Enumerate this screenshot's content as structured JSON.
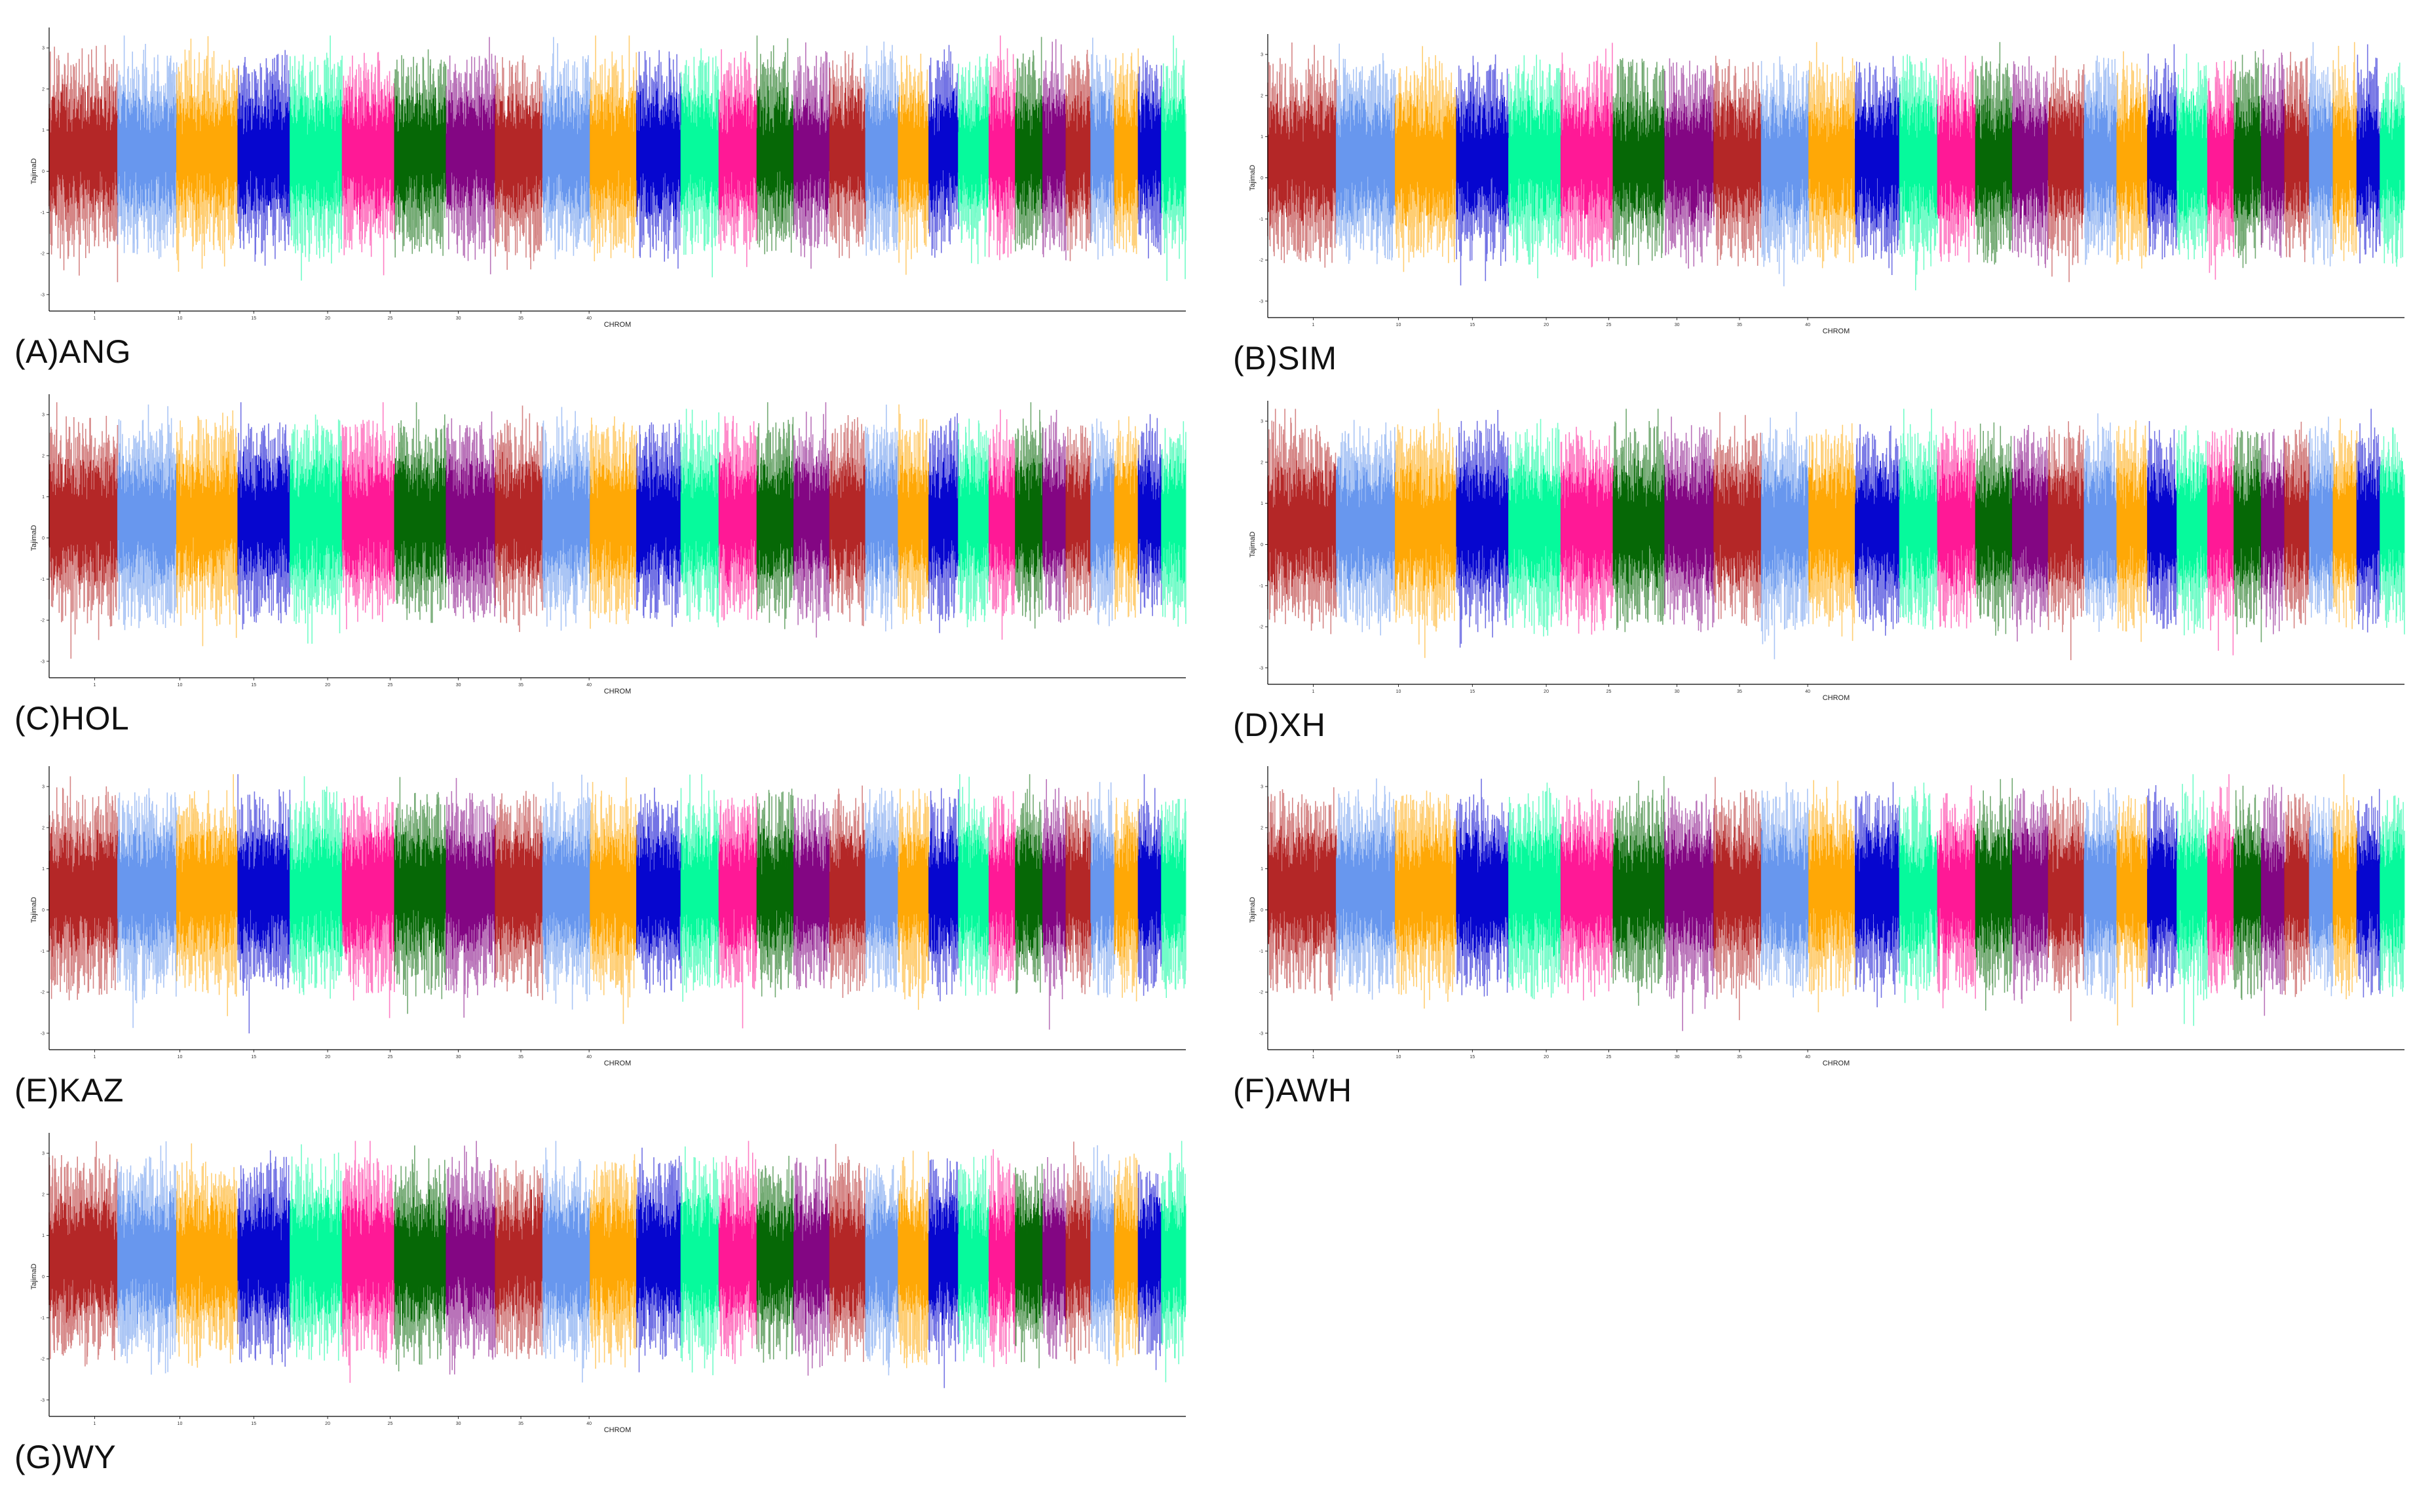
{
  "figure": {
    "x_axis_title": "CHROM",
    "y_axis_title": "TajimaD"
  },
  "chart_data": [
    {
      "type": "line",
      "panel": "(A)ANG",
      "xlabel": "CHROM",
      "ylabel": "TajimaD",
      "categories": [
        "1",
        "2",
        "3",
        "4",
        "5",
        "6",
        "7",
        "8",
        "9",
        "10",
        "11",
        "12",
        "13",
        "14",
        "15",
        "16",
        "17",
        "18",
        "19",
        "20",
        "21",
        "22",
        "23",
        "24",
        "25",
        "26",
        "27",
        "28",
        "29"
      ],
      "x_tick_labels": [
        "1",
        "10",
        "15",
        "20",
        "25",
        "30",
        "35",
        "40"
      ],
      "y_tick_labels": [
        "-3",
        "-2",
        "-1",
        "0",
        "1",
        "2",
        "3"
      ],
      "ylim": [
        -3.4,
        3.4
      ],
      "grid": false,
      "legend": "none",
      "chromosome_palette": [
        "#b22222",
        "#6495ed",
        "#ffa500",
        "#0000cd",
        "#00fa9a",
        "#ff1493",
        "#006400",
        "#800080"
      ]
    },
    {
      "type": "line",
      "panel": "(B)SIM",
      "xlabel": "CHROM",
      "ylabel": "TajimaD",
      "categories": [
        "1",
        "2",
        "3",
        "4",
        "5",
        "6",
        "7",
        "8",
        "9",
        "10",
        "11",
        "12",
        "13",
        "14",
        "15",
        "16",
        "17",
        "18",
        "19",
        "20",
        "21",
        "22",
        "23",
        "24",
        "25",
        "26",
        "27",
        "28",
        "29"
      ],
      "x_tick_labels": [
        "1",
        "10",
        "15",
        "20",
        "25",
        "30",
        "35",
        "40"
      ],
      "y_tick_labels": [
        "-3",
        "-2",
        "-1",
        "0",
        "1",
        "2",
        "3"
      ],
      "ylim": [
        -3.4,
        3.4
      ],
      "grid": false,
      "legend": "none",
      "chromosome_palette": [
        "#b22222",
        "#6495ed",
        "#ffa500",
        "#0000cd",
        "#00fa9a",
        "#ff1493",
        "#006400",
        "#800080"
      ]
    },
    {
      "type": "line",
      "panel": "(C)HOL",
      "xlabel": "CHROM",
      "ylabel": "TajimaD",
      "categories": [
        "1",
        "2",
        "3",
        "4",
        "5",
        "6",
        "7",
        "8",
        "9",
        "10",
        "11",
        "12",
        "13",
        "14",
        "15",
        "16",
        "17",
        "18",
        "19",
        "20",
        "21",
        "22",
        "23",
        "24",
        "25",
        "26",
        "27",
        "28",
        "29"
      ],
      "x_tick_labels": [
        "1",
        "10",
        "15",
        "20",
        "25",
        "30",
        "35",
        "40"
      ],
      "y_tick_labels": [
        "-3",
        "-2",
        "-1",
        "0",
        "1",
        "2",
        "3"
      ],
      "ylim": [
        -3.4,
        3.4
      ],
      "grid": false,
      "legend": "none",
      "chromosome_palette": [
        "#b22222",
        "#6495ed",
        "#ffa500",
        "#0000cd",
        "#00fa9a",
        "#ff1493",
        "#006400",
        "#800080"
      ]
    },
    {
      "type": "line",
      "panel": "(D)XH",
      "xlabel": "CHROM",
      "ylabel": "TajimaD",
      "categories": [
        "1",
        "2",
        "3",
        "4",
        "5",
        "6",
        "7",
        "8",
        "9",
        "10",
        "11",
        "12",
        "13",
        "14",
        "15",
        "16",
        "17",
        "18",
        "19",
        "20",
        "21",
        "22",
        "23",
        "24",
        "25",
        "26",
        "27",
        "28",
        "29"
      ],
      "x_tick_labels": [
        "1",
        "10",
        "15",
        "20",
        "25",
        "30",
        "35",
        "40"
      ],
      "y_tick_labels": [
        "-3",
        "-2",
        "-1",
        "0",
        "1",
        "2",
        "3"
      ],
      "ylim": [
        -3.4,
        3.4
      ],
      "grid": false,
      "legend": "none",
      "chromosome_palette": [
        "#b22222",
        "#6495ed",
        "#ffa500",
        "#0000cd",
        "#00fa9a",
        "#ff1493",
        "#006400",
        "#800080"
      ]
    },
    {
      "type": "line",
      "panel": "(E)KAZ",
      "xlabel": "CHROM",
      "ylabel": "TajimaD",
      "categories": [
        "1",
        "2",
        "3",
        "4",
        "5",
        "6",
        "7",
        "8",
        "9",
        "10",
        "11",
        "12",
        "13",
        "14",
        "15",
        "16",
        "17",
        "18",
        "19",
        "20",
        "21",
        "22",
        "23",
        "24",
        "25",
        "26",
        "27",
        "28",
        "29"
      ],
      "x_tick_labels": [
        "1",
        "10",
        "15",
        "20",
        "25",
        "30",
        "35",
        "40"
      ],
      "y_tick_labels": [
        "-3",
        "-2",
        "-1",
        "0",
        "1",
        "2",
        "3"
      ],
      "ylim": [
        -3.4,
        3.4
      ],
      "grid": false,
      "legend": "none",
      "chromosome_palette": [
        "#b22222",
        "#6495ed",
        "#ffa500",
        "#0000cd",
        "#00fa9a",
        "#ff1493",
        "#006400",
        "#800080"
      ]
    },
    {
      "type": "line",
      "panel": "(F)AWH",
      "xlabel": "CHROM",
      "ylabel": "TajimaD",
      "categories": [
        "1",
        "2",
        "3",
        "4",
        "5",
        "6",
        "7",
        "8",
        "9",
        "10",
        "11",
        "12",
        "13",
        "14",
        "15",
        "16",
        "17",
        "18",
        "19",
        "20",
        "21",
        "22",
        "23",
        "24",
        "25",
        "26",
        "27",
        "28",
        "29"
      ],
      "x_tick_labels": [
        "1",
        "10",
        "15",
        "20",
        "25",
        "30",
        "35",
        "40"
      ],
      "y_tick_labels": [
        "-3",
        "-2",
        "-1",
        "0",
        "1",
        "2",
        "3"
      ],
      "ylim": [
        -3.4,
        3.4
      ],
      "grid": false,
      "legend": "none",
      "chromosome_palette": [
        "#b22222",
        "#6495ed",
        "#ffa500",
        "#0000cd",
        "#00fa9a",
        "#ff1493",
        "#006400",
        "#800080"
      ]
    },
    {
      "type": "line",
      "panel": "(G)WY",
      "xlabel": "CHROM",
      "ylabel": "TajimaD",
      "categories": [
        "1",
        "2",
        "3",
        "4",
        "5",
        "6",
        "7",
        "8",
        "9",
        "10",
        "11",
        "12",
        "13",
        "14",
        "15",
        "16",
        "17",
        "18",
        "19",
        "20",
        "21",
        "22",
        "23",
        "24",
        "25",
        "26",
        "27",
        "28",
        "29"
      ],
      "x_tick_labels": [
        "1",
        "10",
        "15",
        "20",
        "25",
        "30",
        "35",
        "40"
      ],
      "y_tick_labels": [
        "-3",
        "-2",
        "-1",
        "0",
        "1",
        "2",
        "3"
      ],
      "ylim": [
        -3.4,
        3.4
      ],
      "grid": false,
      "legend": "none",
      "chromosome_palette": [
        "#b22222",
        "#6495ed",
        "#ffa500",
        "#0000cd",
        "#00fa9a",
        "#ff1493",
        "#006400",
        "#800080"
      ]
    }
  ]
}
